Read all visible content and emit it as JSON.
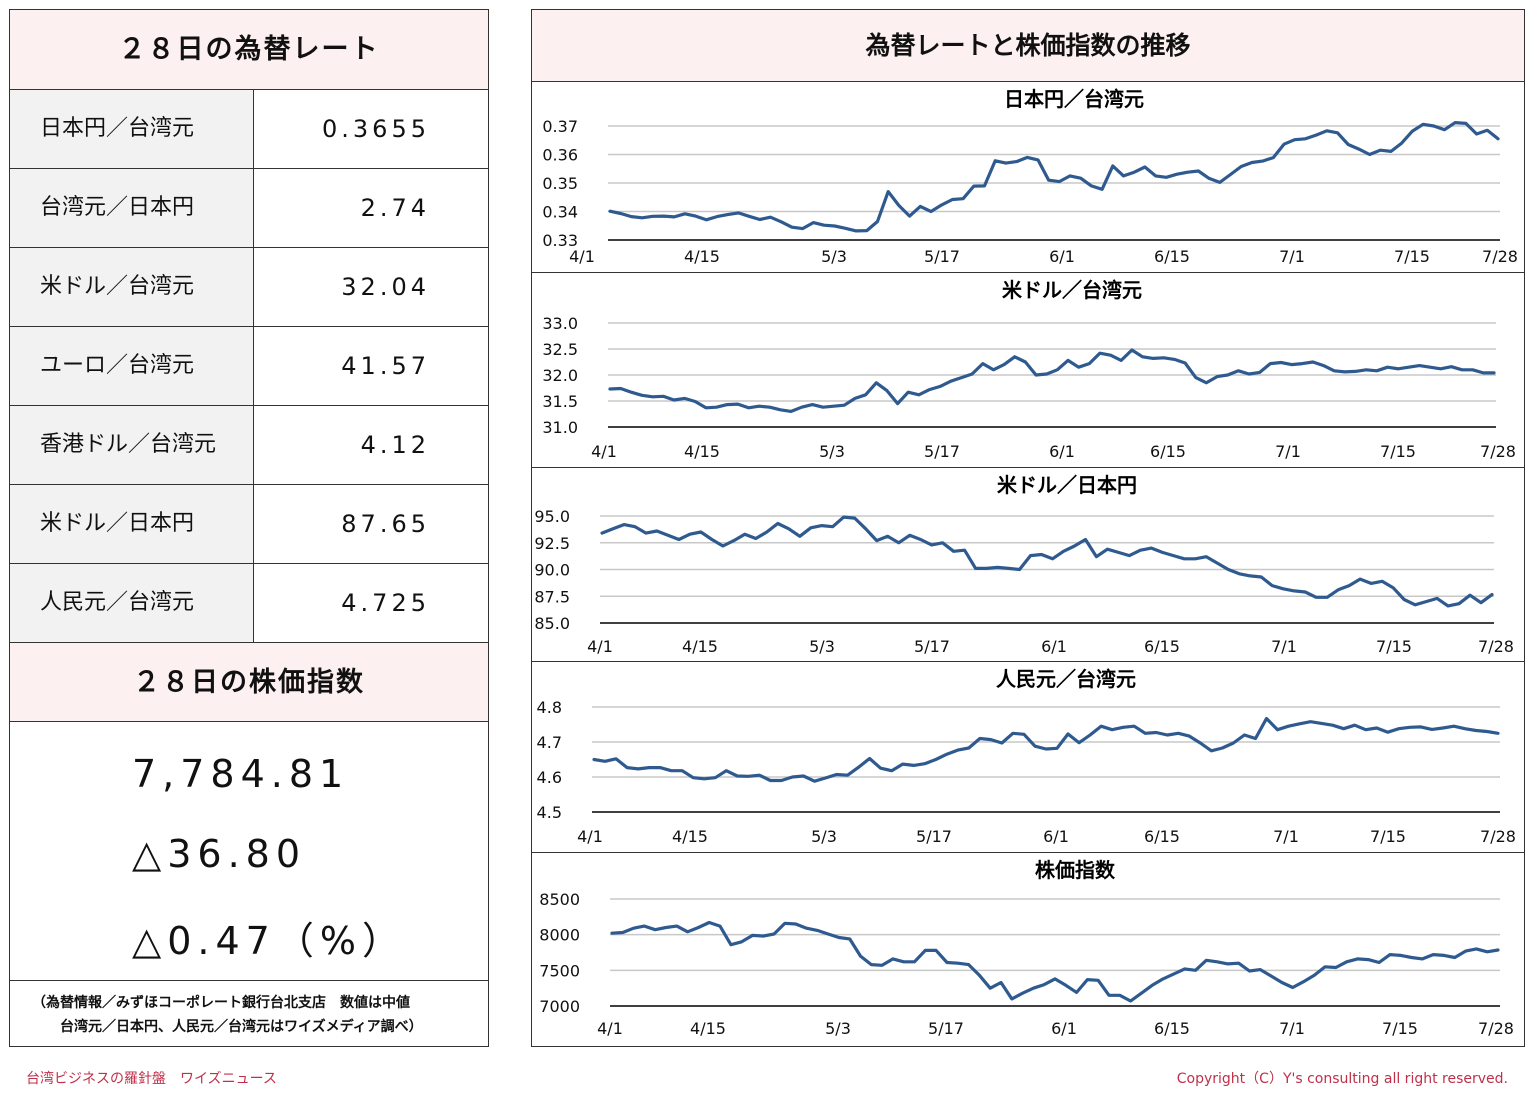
{
  "left": {
    "title": "２８日の為替レート",
    "rates": [
      {
        "name": "日本円／台湾元",
        "value": "0.3655"
      },
      {
        "name": "台湾元／日本円",
        "value": "2.74"
      },
      {
        "name": "米ドル／台湾元",
        "value": "32.04"
      },
      {
        "name": "ユーロ／台湾元",
        "value": "41.57"
      },
      {
        "name": "香港ドル／台湾元",
        "value": "4.12"
      },
      {
        "name": "米ドル／日本円",
        "value": "87.65"
      },
      {
        "name": "人民元／台湾元",
        "value": "4.725"
      }
    ],
    "stock_title": "２８日の株価指数",
    "stock_value": "7,784.81",
    "stock_change": "△36.80",
    "stock_change_pct": "△0.47（%）",
    "note_line1": "（為替情報／みずほコーポレート銀行台北支店　数値は中値",
    "note_line2": "台湾元／日本円、人民元／台湾元はワイズメディア調べ）"
  },
  "right": {
    "title": "為替レートと株価指数の推移"
  },
  "footer": {
    "left": "台湾ビジネスの羅針盤　ワイズニュース",
    "right": "Copyright（C）Y's consulting all right reserved."
  },
  "colors": {
    "line": "#2f5a8f",
    "header_bg": "#fdf0f0",
    "name_bg": "#f2f2f2",
    "footer": "#c0304a"
  },
  "chart_data": [
    {
      "type": "line",
      "title": "日本円／台湾元",
      "x_labels": [
        "4/1",
        "4/15",
        "5/3",
        "5/17",
        "6/1",
        "6/15",
        "7/1",
        "7/15",
        "7/28"
      ],
      "ylim": [
        0.33,
        0.37
      ],
      "yticks": [
        "0.37",
        "0.36",
        "0.35",
        "0.34",
        "0.33"
      ],
      "grid": true,
      "values": [
        0.3401,
        0.3393,
        0.3382,
        0.3378,
        0.3383,
        0.3384,
        0.3381,
        0.3392,
        0.3384,
        0.3371,
        0.3382,
        0.3389,
        0.3395,
        0.3383,
        0.3372,
        0.338,
        0.3364,
        0.3345,
        0.334,
        0.3361,
        0.3352,
        0.3349,
        0.3341,
        0.3332,
        0.3333,
        0.3365,
        0.347,
        0.3421,
        0.3384,
        0.3418,
        0.34,
        0.3423,
        0.3442,
        0.3445,
        0.3489,
        0.349,
        0.3578,
        0.357,
        0.3575,
        0.359,
        0.3581,
        0.351,
        0.3505,
        0.3525,
        0.3517,
        0.349,
        0.3478,
        0.356,
        0.3525,
        0.3538,
        0.3556,
        0.3525,
        0.352,
        0.3531,
        0.3538,
        0.3542,
        0.3516,
        0.3502,
        0.353,
        0.3558,
        0.3572,
        0.3577,
        0.3589,
        0.3636,
        0.3652,
        0.3655,
        0.3668,
        0.3683,
        0.3676,
        0.3635,
        0.3619,
        0.36,
        0.3615,
        0.3611,
        0.364,
        0.3682,
        0.3706,
        0.37,
        0.3687,
        0.3712,
        0.3709,
        0.3672,
        0.3685,
        0.3655
      ]
    },
    {
      "type": "line",
      "title": "米ドル／台湾元",
      "x_labels": [
        "4/1",
        "4/15",
        "5/3",
        "5/17",
        "6/1",
        "6/15",
        "7/1",
        "7/15",
        "7/28"
      ],
      "ylim": [
        31.0,
        33.0
      ],
      "yticks": [
        "33.0",
        "32.5",
        "32.0",
        "31.5",
        "31.0"
      ],
      "grid": true,
      "values": [
        31.73,
        31.74,
        31.67,
        31.61,
        31.58,
        31.59,
        31.52,
        31.55,
        31.49,
        31.37,
        31.38,
        31.43,
        31.44,
        31.37,
        31.4,
        31.38,
        31.33,
        31.3,
        31.38,
        31.43,
        31.38,
        31.4,
        31.42,
        31.55,
        31.62,
        31.85,
        31.7,
        31.45,
        31.67,
        31.62,
        31.72,
        31.78,
        31.88,
        31.95,
        32.02,
        32.22,
        32.1,
        32.2,
        32.35,
        32.25,
        32.0,
        32.02,
        32.1,
        32.28,
        32.15,
        32.22,
        32.42,
        32.38,
        32.28,
        32.48,
        32.35,
        32.32,
        32.33,
        32.3,
        32.23,
        31.95,
        31.85,
        31.97,
        32.0,
        32.08,
        32.02,
        32.05,
        32.22,
        32.24,
        32.2,
        32.22,
        32.25,
        32.18,
        32.08,
        32.06,
        32.07,
        32.1,
        32.08,
        32.15,
        32.12,
        32.15,
        32.18,
        32.15,
        32.12,
        32.16,
        32.1,
        32.1,
        32.04,
        32.04
      ]
    },
    {
      "type": "line",
      "title": "米ドル／日本円",
      "x_labels": [
        "4/1",
        "4/15",
        "5/3",
        "5/17",
        "6/1",
        "6/15",
        "7/1",
        "7/15",
        "7/28"
      ],
      "ylim": [
        85.0,
        95.0
      ],
      "yticks": [
        "95.0",
        "92.5",
        "90.0",
        "87.5",
        "85.0"
      ],
      "grid": true,
      "values": [
        93.4,
        93.8,
        94.2,
        94.0,
        93.4,
        93.6,
        93.2,
        92.8,
        93.3,
        93.5,
        92.8,
        92.2,
        92.7,
        93.3,
        92.9,
        93.5,
        94.3,
        93.8,
        93.1,
        93.9,
        94.1,
        94.0,
        94.9,
        94.8,
        93.8,
        92.7,
        93.1,
        92.5,
        93.2,
        92.8,
        92.3,
        92.5,
        91.7,
        91.8,
        90.1,
        90.1,
        90.2,
        90.1,
        90.0,
        91.3,
        91.4,
        91.0,
        91.7,
        92.2,
        92.8,
        91.2,
        91.9,
        91.6,
        91.3,
        91.8,
        92.0,
        91.6,
        91.3,
        91.0,
        91.0,
        91.2,
        90.6,
        90.0,
        89.6,
        89.4,
        89.3,
        88.5,
        88.2,
        88.0,
        87.9,
        87.4,
        87.4,
        88.1,
        88.5,
        89.1,
        88.7,
        88.9,
        88.3,
        87.2,
        86.7,
        87.0,
        87.3,
        86.6,
        86.8,
        87.6,
        86.9,
        87.65
      ]
    },
    {
      "type": "line",
      "title": "人民元／台湾元",
      "x_labels": [
        "4/1",
        "4/15",
        "5/3",
        "5/17",
        "6/1",
        "6/15",
        "7/1",
        "7/15",
        "7/28"
      ],
      "ylim": [
        4.5,
        4.8
      ],
      "yticks": [
        "4.8",
        "4.7",
        "4.6",
        "4.5"
      ],
      "grid": true,
      "values": [
        4.65,
        4.645,
        4.652,
        4.627,
        4.623,
        4.627,
        4.627,
        4.618,
        4.618,
        4.598,
        4.595,
        4.598,
        4.618,
        4.603,
        4.602,
        4.605,
        4.59,
        4.59,
        4.6,
        4.603,
        4.588,
        4.597,
        4.607,
        4.605,
        4.628,
        4.653,
        4.625,
        4.618,
        4.637,
        4.633,
        4.638,
        4.65,
        4.665,
        4.677,
        4.683,
        4.71,
        4.707,
        4.697,
        4.725,
        4.722,
        4.688,
        4.68,
        4.682,
        4.723,
        4.698,
        4.72,
        4.745,
        4.735,
        4.742,
        4.745,
        4.725,
        4.727,
        4.72,
        4.725,
        4.717,
        4.697,
        4.675,
        4.683,
        4.697,
        4.72,
        4.71,
        4.767,
        4.735,
        4.745,
        4.752,
        4.758,
        4.753,
        4.748,
        4.738,
        4.748,
        4.735,
        4.74,
        4.728,
        4.738,
        4.742,
        4.743,
        4.736,
        4.74,
        4.745,
        4.738,
        4.733,
        4.73,
        4.725
      ]
    },
    {
      "type": "line",
      "title": "株価指数",
      "x_labels": [
        "4/1",
        "4/15",
        "5/3",
        "5/17",
        "6/1",
        "6/15",
        "7/1",
        "7/15",
        "7/28"
      ],
      "ylim": [
        7000,
        8500
      ],
      "yticks": [
        "8500",
        "8000",
        "7500",
        "7000"
      ],
      "grid": true,
      "values": [
        8020,
        8030,
        8090,
        8120,
        8070,
        8100,
        8120,
        8040,
        8100,
        8170,
        8120,
        7860,
        7900,
        7990,
        7980,
        8010,
        8160,
        8150,
        8090,
        8060,
        8010,
        7960,
        7940,
        7700,
        7580,
        7570,
        7660,
        7620,
        7620,
        7780,
        7780,
        7610,
        7600,
        7580,
        7430,
        7250,
        7330,
        7100,
        7180,
        7250,
        7300,
        7380,
        7290,
        7190,
        7370,
        7360,
        7150,
        7150,
        7070,
        7180,
        7290,
        7380,
        7450,
        7520,
        7500,
        7640,
        7620,
        7590,
        7600,
        7490,
        7510,
        7420,
        7330,
        7260,
        7340,
        7430,
        7550,
        7540,
        7620,
        7660,
        7650,
        7610,
        7720,
        7710,
        7680,
        7660,
        7720,
        7710,
        7680,
        7770,
        7800,
        7760,
        7785
      ]
    }
  ]
}
